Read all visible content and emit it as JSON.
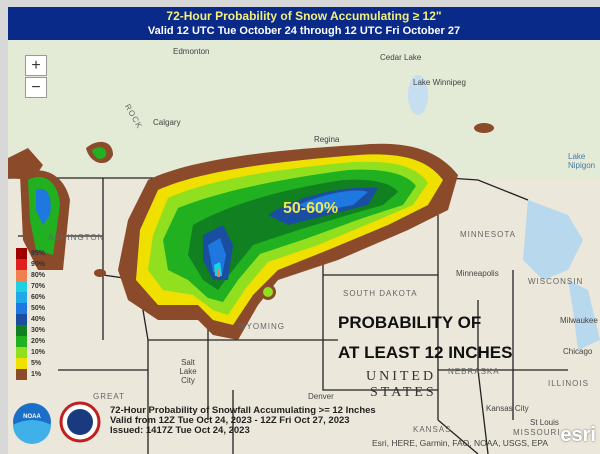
{
  "header": {
    "title": "72-Hour Probability of Snow Accumulating ≥ 12\"",
    "subtitle": "Valid 12 UTC Tue October 24 through 12 UTC Fri October 27"
  },
  "controls": {
    "zoom_in": "+",
    "zoom_out": "−"
  },
  "places": {
    "edmonton": "Edmonton",
    "cedar_lake": "Cedar Lake",
    "lake_winnipeg": "Lake Winnipeg",
    "calgary": "Calgary",
    "regina": "Regina",
    "lake_nipigon": "Lake Nipigon",
    "minneapolis": "Minneapolis",
    "milwaukee": "Milwaukee",
    "chicago": "Chicago",
    "salt_lake": "Salt Lake City",
    "denver": "Denver",
    "kansas_city": "Kansas City",
    "st_louis": "St Louis",
    "great": "GREAT"
  },
  "states": {
    "washington": "ASHINGTON",
    "minnesota": "MINNESOTA",
    "wisconsin": "WISCONSIN",
    "south_dakota": "SOUTH DAKOTA",
    "wyoming": "WYOMING",
    "nebraska": "NEBRASKA",
    "illinois": "ILLINOIS",
    "kansas": "KANSAS",
    "missouri": "MISSOURI",
    "united": "UNITED",
    "states": "STATES",
    "rock": "ROCK"
  },
  "annotations": {
    "peak": "50-60%",
    "line1": "PROBABILITY OF",
    "line2": "AT LEAST 12 INCHES"
  },
  "legend": [
    {
      "label": "95%",
      "color": "#a00000"
    },
    {
      "label": "90%",
      "color": "#e02020"
    },
    {
      "label": "80%",
      "color": "#f08050"
    },
    {
      "label": "70%",
      "color": "#20d0e0"
    },
    {
      "label": "60%",
      "color": "#20a8e8"
    },
    {
      "label": "50%",
      "color": "#1e78e0"
    },
    {
      "label": "40%",
      "color": "#1a4ea0"
    },
    {
      "label": "30%",
      "color": "#108020"
    },
    {
      "label": "20%",
      "color": "#20b020"
    },
    {
      "label": "10%",
      "color": "#90e020"
    },
    {
      "label": "5%",
      "color": "#f0e000"
    },
    {
      "label": "1%",
      "color": "#8b4a2a"
    }
  ],
  "info": {
    "line1": "72-Hour Probability of Snowfall Accumulating >= 12 Inches",
    "line2": "Valid from 12Z Tue Oct 24, 2023 - 12Z Fri Oct 27, 2023",
    "line3": "Issued: 1417Z Tue Oct 24, 2023"
  },
  "attribution": "Esri, HERE, Garmin, FAO, NOAA, USGS, EPA",
  "logos": {
    "noaa": "NOAA",
    "esri": "esri"
  }
}
